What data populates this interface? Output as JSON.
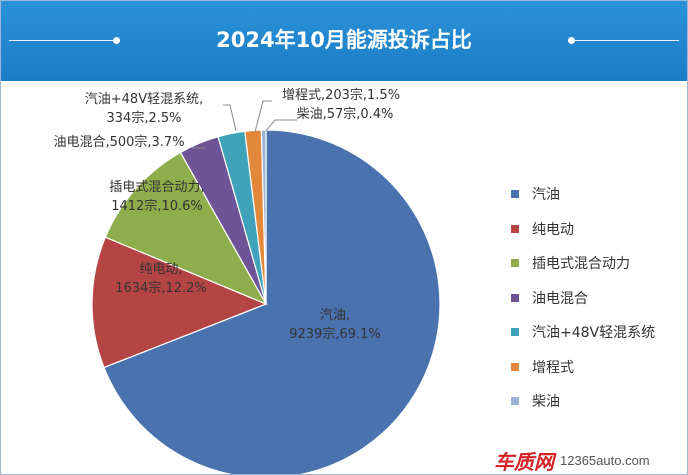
{
  "header": {
    "title": "2024年10月能源投诉占比"
  },
  "chart_data": {
    "type": "pie",
    "title": "2024年10月能源投诉占比",
    "unit": "宗",
    "legend_position": "right",
    "slices": [
      {
        "name": "汽油",
        "value": 9239,
        "percent": 69.1,
        "label_line1": "汽油,",
        "label_line2": "9239宗,69.1%",
        "color": "#4a72ae"
      },
      {
        "name": "纯电动",
        "value": 1634,
        "percent": 12.2,
        "label_line1": "纯电动,",
        "label_line2": "1634宗,12.2%",
        "color": "#b54544"
      },
      {
        "name": "插电式混合动力",
        "value": 1412,
        "percent": 10.6,
        "label_line1": "插电式混合动力,",
        "label_line2": "1412宗,10.6%",
        "color": "#8eae4c"
      },
      {
        "name": "油电混合",
        "value": 500,
        "percent": 3.7,
        "label_line1": "油电混合,500宗,3.7%",
        "label_line2": "",
        "color": "#6e5497"
      },
      {
        "name": "汽油+48V轻混系统",
        "value": 334,
        "percent": 2.5,
        "label_line1": "汽油+48V轻混系统,",
        "label_line2": "334宗,2.5%",
        "color": "#3ea3b8"
      },
      {
        "name": "增程式",
        "value": 203,
        "percent": 1.5,
        "label_line1": "增程式,203宗,1.5%",
        "label_line2": "",
        "color": "#e1883a"
      },
      {
        "name": "柴油",
        "value": 57,
        "percent": 0.4,
        "label_line1": "柴油,57宗,0.4%",
        "label_line2": "",
        "color": "#9cb2d4"
      }
    ]
  },
  "watermark": {
    "logo_text": "车质网",
    "url": "12365auto.com"
  }
}
